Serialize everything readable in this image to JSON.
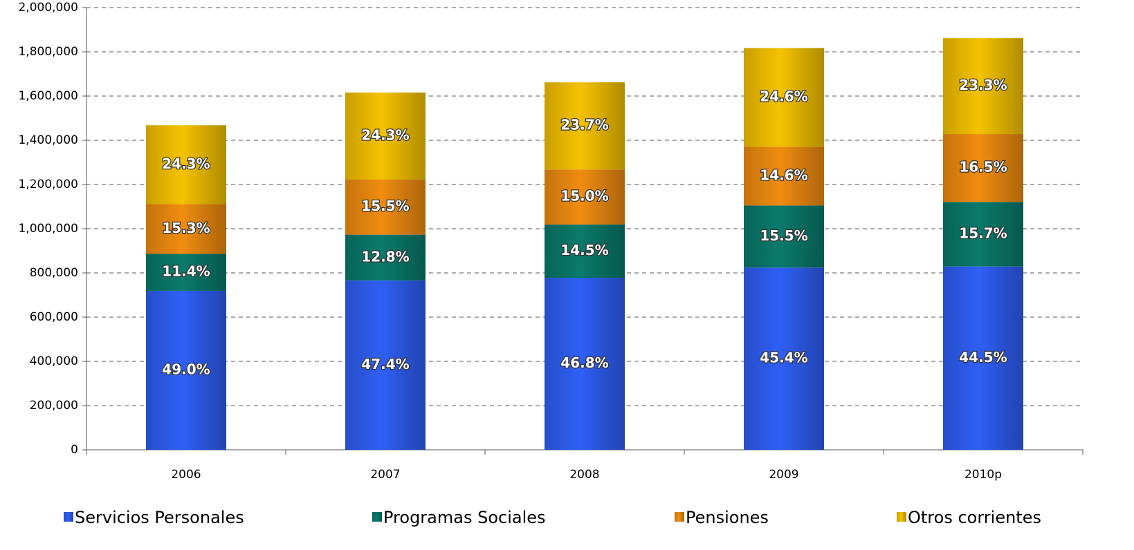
{
  "chart_data": {
    "type": "stacked_bar",
    "categories": [
      "2006",
      "2007",
      "2008",
      "2009",
      "2010p"
    ],
    "series": [
      {
        "name": "Servicios Personales",
        "color": "#2f5ff5",
        "values": [
          719000,
          766000,
          778000,
          824000,
          829000
        ],
        "value_labels": [
          "49.0%",
          "47.4%",
          "46.8%",
          "45.4%",
          "44.5%"
        ]
      },
      {
        "name": "Programas Sociales",
        "color": "#0a7a6c",
        "values": [
          167000,
          207000,
          241000,
          281000,
          292000
        ],
        "value_labels": [
          "11.4%",
          "12.8%",
          "14.5%",
          "15.5%",
          "15.7%"
        ]
      },
      {
        "name": "Pensiones",
        "color": "#f08c10",
        "values": [
          225000,
          250000,
          249000,
          265000,
          307000
        ],
        "value_labels": [
          "15.3%",
          "15.5%",
          "15.0%",
          "14.6%",
          "16.5%"
        ]
      },
      {
        "name": "Otros corrientes",
        "color": "#f5c200",
        "values": [
          357000,
          393000,
          394000,
          447000,
          434000
        ],
        "value_labels": [
          "24.3%",
          "24.3%",
          "23.7%",
          "24.6%",
          "23.3%"
        ]
      }
    ],
    "ylim": [
      0,
      2000000
    ],
    "yticks": [
      0,
      {
        "value": 200000,
        "label": "200,000"
      },
      {
        "value": 400000,
        "label": "400,000"
      },
      {
        "value": 600000,
        "label": "600,000"
      },
      {
        "value": 800000,
        "label": "800,000"
      },
      {
        "value": 1000000,
        "label": "1,000,000"
      },
      {
        "value": 1200000,
        "label": "1,200,000"
      },
      {
        "value": 1400000,
        "label": "1,400,000"
      },
      {
        "value": 1600000,
        "label": "1,600,000"
      },
      {
        "value": 1800000,
        "label": "1,800,000"
      },
      {
        "value": 2000000,
        "label": "2,000,000"
      }
    ],
    "grid": true,
    "legend": "bottom"
  }
}
